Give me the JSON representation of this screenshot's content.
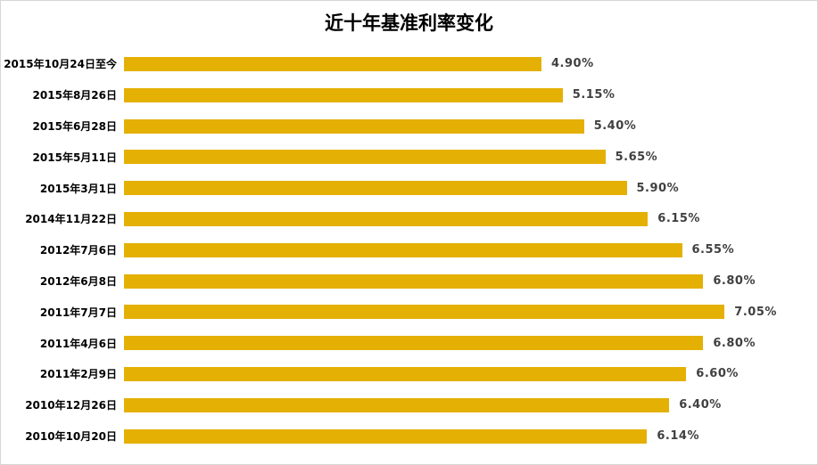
{
  "chart_data": {
    "type": "bar",
    "orientation": "horizontal",
    "title": "近十年基准利率变化",
    "categories": [
      "2015年10月24日至今",
      "2015年8月26日",
      "2015年6月28日",
      "2015年5月11日",
      "2015年3月1日",
      "2014年11月22日",
      "2012年7月6日",
      "2012年6月8日",
      "2011年7月7日",
      "2011年4月6日",
      "2011年2月9日",
      "2010年12月26日",
      "2010年10月20日"
    ],
    "values": [
      4.9,
      5.15,
      5.4,
      5.65,
      5.9,
      6.15,
      6.55,
      6.8,
      7.05,
      6.8,
      6.6,
      6.4,
      6.14
    ],
    "value_labels": [
      "4.90%",
      "5.15%",
      "5.40%",
      "5.65%",
      "5.90%",
      "6.15%",
      "6.55%",
      "6.80%",
      "7.05%",
      "6.80%",
      "6.60%",
      "6.40%",
      "6.14%"
    ],
    "xlabel": "",
    "ylabel": "",
    "xlim": [
      0,
      7.5
    ],
    "grid": false,
    "legend": "none",
    "bar_color": "#E4B004",
    "value_label_color": "#404040",
    "category_label_color": "#000000",
    "background": "#FFFFFF",
    "border_color": "#D6D6D6"
  }
}
